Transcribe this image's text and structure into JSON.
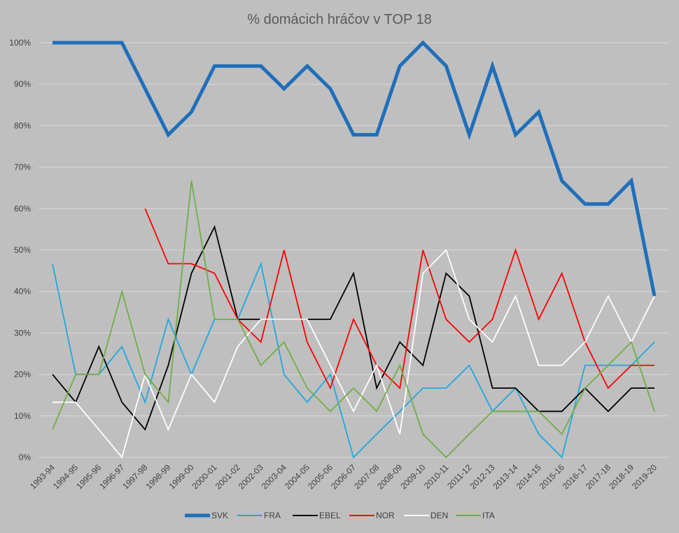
{
  "chart_data": {
    "type": "line",
    "title": "% domácich hráčov v TOP 18",
    "xlabel": "",
    "ylabel": "",
    "ylim": [
      0,
      100
    ],
    "y_ticks": [
      "0%",
      "10%",
      "20%",
      "30%",
      "40%",
      "50%",
      "60%",
      "70%",
      "80%",
      "90%",
      "100%"
    ],
    "grid": true,
    "legend_position": "bottom",
    "categories": [
      "1993-94",
      "1994-95",
      "1995-96",
      "1996-97",
      "1997-98",
      "1998-99",
      "1999-00",
      "2000-01",
      "2001-02",
      "2002-03",
      "2003-04",
      "2004-05",
      "2005-06",
      "2006-07",
      "2007-08",
      "2008-09",
      "2009-10",
      "2010-11",
      "2011-12",
      "2012-13",
      "2013-14",
      "2014-15",
      "2015-16",
      "2016-17",
      "2017-18",
      "2018-19",
      "2019-20"
    ],
    "series": [
      {
        "name": "SVK",
        "color": "#1f6fba",
        "width": 5,
        "values": [
          100,
          100,
          100,
          100,
          88.9,
          77.8,
          83.3,
          94.4,
          94.4,
          94.4,
          88.9,
          94.4,
          88.9,
          77.8,
          77.8,
          94.4,
          100,
          94.4,
          77.8,
          94.4,
          77.8,
          83.3,
          66.7,
          61.1,
          61.1,
          66.7,
          38.9
        ]
      },
      {
        "name": "FRA",
        "color": "#1fa8e0",
        "width": 1.8,
        "values": [
          46.7,
          20,
          20,
          26.7,
          13.3,
          33.3,
          20,
          33.3,
          33.3,
          46.7,
          20,
          13.3,
          20,
          0,
          5.6,
          11.1,
          16.7,
          16.7,
          22.2,
          11.1,
          16.7,
          5.6,
          0,
          22.2,
          22.2,
          22.2,
          27.8
        ]
      },
      {
        "name": "EBEL",
        "color": "#000000",
        "width": 1.8,
        "values": [
          20,
          13.3,
          26.7,
          13.3,
          6.7,
          22.2,
          44.4,
          55.6,
          33.3,
          33.3,
          33.3,
          33.3,
          33.3,
          44.4,
          16.7,
          27.8,
          22.2,
          44.4,
          38.9,
          16.7,
          16.7,
          11.1,
          11.1,
          16.7,
          11.1,
          16.7,
          16.7
        ]
      },
      {
        "name": "NOR",
        "color": "#ff0000",
        "width": 1.8,
        "values": [
          null,
          null,
          null,
          null,
          60,
          46.7,
          46.7,
          44.4,
          33.3,
          27.8,
          50,
          27.8,
          16.7,
          33.3,
          22.2,
          16.7,
          50,
          33.3,
          27.8,
          33.3,
          50,
          33.3,
          44.4,
          27.8,
          16.7,
          22.2,
          22.2
        ]
      },
      {
        "name": "DEN",
        "color": "#ffffff",
        "width": 1.8,
        "values": [
          13.3,
          13.3,
          6.7,
          0,
          20,
          6.7,
          20,
          13.3,
          26.7,
          33.3,
          33.3,
          33.3,
          22.2,
          11.1,
          22.2,
          5.6,
          44.4,
          50,
          33.3,
          27.8,
          38.9,
          22.2,
          22.2,
          27.8,
          38.9,
          27.8,
          38.9
        ]
      },
      {
        "name": "ITA",
        "color": "#70ad47",
        "width": 1.8,
        "values": [
          6.7,
          20,
          20,
          40,
          20,
          13.3,
          66.7,
          33.3,
          33.3,
          22.2,
          27.8,
          16.7,
          11.1,
          16.7,
          11.1,
          22.2,
          5.6,
          0,
          5.6,
          11.1,
          11.1,
          11.1,
          5.6,
          16.7,
          22.2,
          27.8,
          11.1
        ]
      }
    ]
  }
}
